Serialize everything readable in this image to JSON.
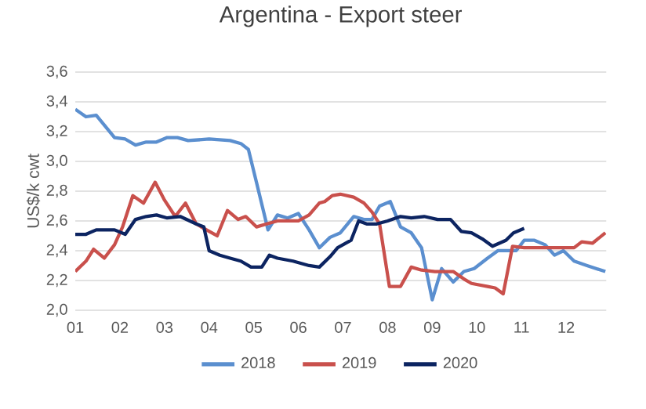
{
  "chart_data": {
    "type": "line",
    "title": "Argentina - Export steer",
    "ylabel": "US$/k cwt",
    "xlim": [
      1,
      12.9
    ],
    "ylim": [
      2.0,
      3.6
    ],
    "xticks": [
      {
        "value": 1,
        "label": "01"
      },
      {
        "value": 2,
        "label": "02"
      },
      {
        "value": 3,
        "label": "03"
      },
      {
        "value": 4,
        "label": "04"
      },
      {
        "value": 5,
        "label": "05"
      },
      {
        "value": 6,
        "label": "06"
      },
      {
        "value": 7,
        "label": "07"
      },
      {
        "value": 8,
        "label": "08"
      },
      {
        "value": 9,
        "label": "09"
      },
      {
        "value": 10,
        "label": "10"
      },
      {
        "value": 11,
        "label": "11"
      },
      {
        "value": 12,
        "label": "12"
      }
    ],
    "yticks": [
      {
        "value": 2.0,
        "label": "2,0"
      },
      {
        "value": 2.2,
        "label": "2,2"
      },
      {
        "value": 2.4,
        "label": "2,4"
      },
      {
        "value": 2.6,
        "label": "2,6"
      },
      {
        "value": 2.8,
        "label": "2,8"
      },
      {
        "value": 3.0,
        "label": "3,0"
      },
      {
        "value": 3.2,
        "label": "3,2"
      },
      {
        "value": 3.4,
        "label": "3,4"
      },
      {
        "value": 3.6,
        "label": "3,6"
      }
    ],
    "grid": "y",
    "legend": "bottom",
    "marker": "none",
    "line_style": "solid",
    "series": [
      {
        "name": "2018",
        "color": "#5b8fcf",
        "x": [
          1.0,
          1.24,
          1.47,
          1.88,
          2.12,
          2.35,
          2.59,
          2.82,
          3.06,
          3.29,
          3.53,
          4.0,
          4.47,
          4.71,
          4.88,
          5.06,
          5.32,
          5.53,
          5.76,
          6.0,
          6.24,
          6.47,
          6.71,
          6.94,
          7.24,
          7.47,
          7.65,
          7.82,
          8.06,
          8.29,
          8.53,
          8.76,
          9.0,
          9.21,
          9.47,
          9.71,
          9.94,
          10.24,
          10.47,
          10.88,
          11.06,
          11.29,
          11.53,
          11.74,
          11.94,
          12.18,
          12.47,
          12.88
        ],
        "values": [
          3.35,
          3.3,
          3.31,
          3.16,
          3.15,
          3.11,
          3.13,
          3.13,
          3.16,
          3.16,
          3.14,
          3.15,
          3.14,
          3.12,
          3.08,
          2.86,
          2.54,
          2.64,
          2.62,
          2.65,
          2.54,
          2.42,
          2.49,
          2.52,
          2.63,
          2.61,
          2.61,
          2.7,
          2.73,
          2.56,
          2.52,
          2.42,
          2.07,
          2.28,
          2.19,
          2.26,
          2.28,
          2.35,
          2.4,
          2.4,
          2.47,
          2.47,
          2.44,
          2.37,
          2.4,
          2.33,
          2.3,
          2.26
        ]
      },
      {
        "name": "2019",
        "color": "#c9504c",
        "x": [
          1.0,
          1.24,
          1.41,
          1.65,
          1.88,
          2.06,
          2.29,
          2.53,
          2.79,
          3.0,
          3.24,
          3.47,
          3.71,
          3.94,
          4.18,
          4.41,
          4.65,
          4.82,
          5.06,
          5.29,
          5.53,
          6.0,
          6.24,
          6.47,
          6.59,
          6.76,
          6.94,
          7.24,
          7.47,
          7.65,
          7.82,
          8.04,
          8.29,
          8.53,
          8.76,
          9.06,
          9.47,
          9.71,
          9.88,
          10.24,
          10.41,
          10.59,
          10.8,
          11.06,
          11.53,
          12.18,
          12.35,
          12.59,
          12.88
        ],
        "values": [
          2.26,
          2.33,
          2.41,
          2.35,
          2.44,
          2.56,
          2.77,
          2.72,
          2.86,
          2.74,
          2.63,
          2.72,
          2.58,
          2.54,
          2.5,
          2.67,
          2.61,
          2.63,
          2.56,
          2.58,
          2.6,
          2.6,
          2.64,
          2.72,
          2.73,
          2.77,
          2.78,
          2.76,
          2.72,
          2.66,
          2.58,
          2.16,
          2.16,
          2.29,
          2.27,
          2.26,
          2.26,
          2.21,
          2.18,
          2.16,
          2.15,
          2.11,
          2.43,
          2.42,
          2.42,
          2.42,
          2.46,
          2.45,
          2.52
        ]
      },
      {
        "name": "2020",
        "color": "#0c2461",
        "x": [
          1.0,
          1.24,
          1.47,
          1.88,
          2.12,
          2.35,
          2.59,
          2.82,
          3.06,
          3.35,
          3.71,
          3.88,
          4.0,
          4.24,
          4.47,
          4.71,
          4.94,
          5.18,
          5.35,
          5.53,
          5.88,
          6.24,
          6.47,
          6.71,
          6.88,
          7.18,
          7.35,
          7.53,
          7.76,
          8.0,
          8.29,
          8.53,
          8.82,
          9.12,
          9.41,
          9.65,
          9.88,
          10.12,
          10.35,
          10.65,
          10.82,
          11.06
        ],
        "values": [
          2.51,
          2.51,
          2.54,
          2.54,
          2.51,
          2.61,
          2.63,
          2.64,
          2.62,
          2.63,
          2.58,
          2.56,
          2.4,
          2.37,
          2.35,
          2.33,
          2.29,
          2.29,
          2.37,
          2.35,
          2.33,
          2.3,
          2.29,
          2.36,
          2.42,
          2.47,
          2.6,
          2.58,
          2.58,
          2.6,
          2.63,
          2.62,
          2.63,
          2.61,
          2.61,
          2.53,
          2.52,
          2.48,
          2.43,
          2.47,
          2.52,
          2.55
        ]
      }
    ]
  }
}
